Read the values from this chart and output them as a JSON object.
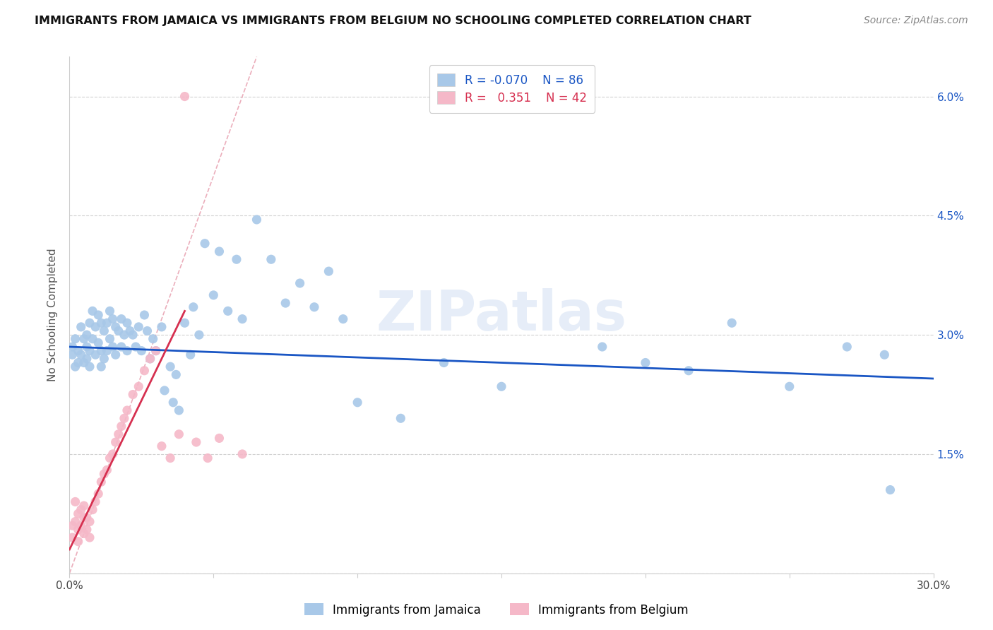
{
  "title": "IMMIGRANTS FROM JAMAICA VS IMMIGRANTS FROM BELGIUM NO SCHOOLING COMPLETED CORRELATION CHART",
  "source": "Source: ZipAtlas.com",
  "ylabel": "No Schooling Completed",
  "xlim": [
    0.0,
    0.3
  ],
  "ylim": [
    0.0,
    0.065
  ],
  "x_tick_positions": [
    0.0,
    0.05,
    0.1,
    0.15,
    0.2,
    0.25,
    0.3
  ],
  "x_tick_labels": [
    "0.0%",
    "",
    "",
    "",
    "",
    "",
    "30.0%"
  ],
  "y_tick_positions": [
    0.0,
    0.015,
    0.03,
    0.045,
    0.06
  ],
  "y_tick_labels_right": [
    "",
    "1.5%",
    "3.0%",
    "4.5%",
    "6.0%"
  ],
  "jamaica_color": "#a8c8e8",
  "belgium_color": "#f5b8c8",
  "jamaica_line_color": "#1a56c4",
  "belgium_line_color": "#d63050",
  "diagonal_color": "#e8a0b0",
  "jamaica_R": "-0.070",
  "jamaica_N": "86",
  "belgium_R": "0.351",
  "belgium_N": "42",
  "watermark": "ZIPatlas",
  "jamaica_scatter_x": [
    0.001,
    0.001,
    0.002,
    0.002,
    0.003,
    0.003,
    0.004,
    0.004,
    0.005,
    0.005,
    0.006,
    0.006,
    0.006,
    0.007,
    0.007,
    0.007,
    0.008,
    0.008,
    0.009,
    0.009,
    0.01,
    0.01,
    0.011,
    0.011,
    0.011,
    0.012,
    0.012,
    0.013,
    0.013,
    0.014,
    0.014,
    0.015,
    0.015,
    0.016,
    0.016,
    0.017,
    0.018,
    0.018,
    0.019,
    0.02,
    0.02,
    0.021,
    0.022,
    0.023,
    0.024,
    0.025,
    0.026,
    0.027,
    0.028,
    0.029,
    0.03,
    0.032,
    0.033,
    0.035,
    0.036,
    0.037,
    0.038,
    0.04,
    0.042,
    0.043,
    0.045,
    0.047,
    0.05,
    0.052,
    0.055,
    0.058,
    0.06,
    0.065,
    0.07,
    0.075,
    0.08,
    0.085,
    0.09,
    0.095,
    0.1,
    0.115,
    0.13,
    0.15,
    0.185,
    0.2,
    0.215,
    0.23,
    0.25,
    0.27,
    0.283,
    0.285
  ],
  "jamaica_scatter_y": [
    0.0275,
    0.0285,
    0.026,
    0.0295,
    0.028,
    0.0265,
    0.031,
    0.0275,
    0.0295,
    0.0265,
    0.03,
    0.0285,
    0.027,
    0.0315,
    0.028,
    0.026,
    0.033,
    0.0295,
    0.031,
    0.0275,
    0.0325,
    0.029,
    0.0315,
    0.028,
    0.026,
    0.0305,
    0.027,
    0.0315,
    0.028,
    0.033,
    0.0295,
    0.032,
    0.0285,
    0.031,
    0.0275,
    0.0305,
    0.032,
    0.0285,
    0.03,
    0.0315,
    0.028,
    0.0305,
    0.03,
    0.0285,
    0.031,
    0.028,
    0.0325,
    0.0305,
    0.027,
    0.0295,
    0.028,
    0.031,
    0.023,
    0.026,
    0.0215,
    0.025,
    0.0205,
    0.0315,
    0.0275,
    0.0335,
    0.03,
    0.0415,
    0.035,
    0.0405,
    0.033,
    0.0395,
    0.032,
    0.0445,
    0.0395,
    0.034,
    0.0365,
    0.0335,
    0.038,
    0.032,
    0.0215,
    0.0195,
    0.0265,
    0.0235,
    0.0285,
    0.0265,
    0.0255,
    0.0315,
    0.0235,
    0.0285,
    0.0275,
    0.0105
  ],
  "belgium_scatter_x": [
    0.001,
    0.001,
    0.002,
    0.002,
    0.003,
    0.003,
    0.003,
    0.004,
    0.004,
    0.005,
    0.005,
    0.005,
    0.006,
    0.006,
    0.007,
    0.007,
    0.008,
    0.009,
    0.01,
    0.011,
    0.012,
    0.013,
    0.014,
    0.015,
    0.016,
    0.017,
    0.018,
    0.019,
    0.02,
    0.022,
    0.024,
    0.026,
    0.028,
    0.03,
    0.032,
    0.035,
    0.038,
    0.04,
    0.044,
    0.048,
    0.052,
    0.06
  ],
  "belgium_scatter_y": [
    0.006,
    0.0045,
    0.009,
    0.0065,
    0.0075,
    0.0055,
    0.004,
    0.008,
    0.006,
    0.007,
    0.0085,
    0.005,
    0.007,
    0.0055,
    0.0065,
    0.0045,
    0.008,
    0.009,
    0.01,
    0.0115,
    0.0125,
    0.013,
    0.0145,
    0.015,
    0.0165,
    0.0175,
    0.0185,
    0.0195,
    0.0205,
    0.0225,
    0.0235,
    0.0255,
    0.027,
    0.028,
    0.016,
    0.0145,
    0.0175,
    0.06,
    0.0165,
    0.0145,
    0.017,
    0.015
  ]
}
